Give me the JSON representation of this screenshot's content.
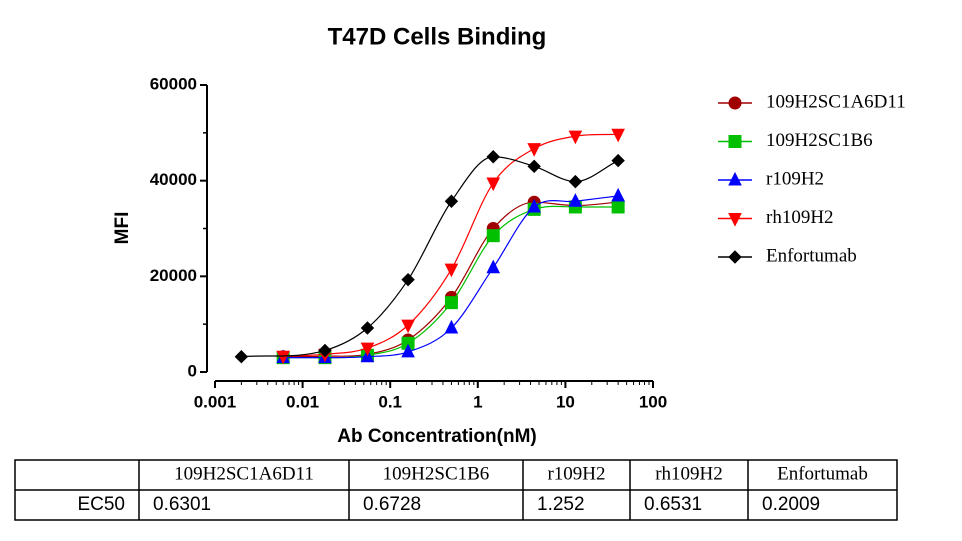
{
  "chart_data": {
    "type": "scatter",
    "title": "T47D  Cells Binding",
    "xlabel": "Ab Concentration(nM)",
    "ylabel": "MFI",
    "xscale": "log",
    "xlim": [
      0.001,
      100
    ],
    "xticks": [
      0.001,
      0.01,
      0.1,
      1,
      10,
      100
    ],
    "ylim": [
      0,
      60000
    ],
    "yticks": [
      0,
      20000,
      40000,
      60000
    ],
    "grid": false,
    "legend": "right",
    "line": "smooth",
    "series": [
      {
        "name": "109H2SC1A6D11",
        "color": "#a00000",
        "marker": "circle",
        "x": [
          0.006,
          0.018,
          0.055,
          0.16,
          0.5,
          1.5,
          4.4,
          13,
          40
        ],
        "values": [
          3200,
          3300,
          3700,
          6700,
          15600,
          30000,
          35500,
          34800,
          35500
        ]
      },
      {
        "name": "109H2SC1B6",
        "color": "#00c000",
        "marker": "square",
        "x": [
          0.006,
          0.018,
          0.055,
          0.16,
          0.5,
          1.5,
          4.4,
          13,
          40
        ],
        "values": [
          3000,
          3000,
          3500,
          6000,
          14500,
          28500,
          34000,
          34500,
          34500
        ]
      },
      {
        "name": "r109H2",
        "color": "#0000ff",
        "marker": "triangle-up",
        "x": [
          0.006,
          0.018,
          0.055,
          0.16,
          0.5,
          1.5,
          4.4,
          13,
          40
        ],
        "values": [
          3000,
          3000,
          3200,
          4200,
          9200,
          21800,
          34500,
          35700,
          36800
        ]
      },
      {
        "name": "rh109H2",
        "color": "#ff0000",
        "marker": "triangle-down",
        "x": [
          0.006,
          0.018,
          0.055,
          0.16,
          0.5,
          1.5,
          4.4,
          13,
          40
        ],
        "values": [
          3300,
          3700,
          5000,
          9800,
          21500,
          39500,
          46700,
          49300,
          49700
        ]
      },
      {
        "name": "Enfortumab",
        "color": "#000000",
        "marker": "diamond",
        "x": [
          0.002,
          0.018,
          0.055,
          0.16,
          0.5,
          1.5,
          4.4,
          13,
          40
        ],
        "values": [
          3200,
          4500,
          9200,
          19300,
          35700,
          45000,
          43000,
          39800,
          44200
        ]
      }
    ]
  },
  "table": {
    "header": [
      "109H2SC1A6D11",
      "109H2SC1B6",
      "r109H2",
      "rh109H2",
      "Enfortumab"
    ],
    "rows": [
      [
        "EC50",
        0.6301,
        0.6728,
        1.252,
        0.6531,
        0.2009
      ]
    ]
  }
}
